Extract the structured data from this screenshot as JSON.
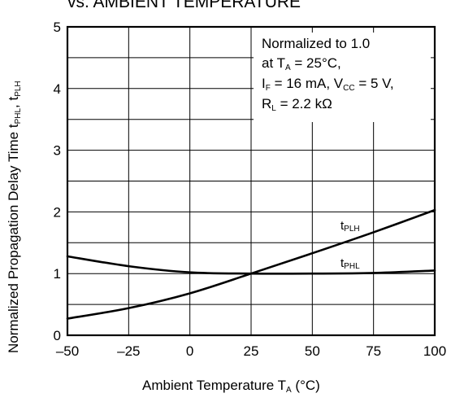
{
  "chart_data": {
    "type": "line",
    "title": "vs. AMBIENT TEMPERATURE",
    "xlabel": {
      "main": "Ambient Temperature  T",
      "sub": "A",
      "suffix": " (°C)"
    },
    "ylabel": {
      "main": "Normalized Propagation Delay Time  t",
      "sub1": "PHL",
      "mid": ", t",
      "sub2": "PLH"
    },
    "xlim": [
      -50,
      100
    ],
    "ylim": [
      0,
      5
    ],
    "x_ticks": [
      -50,
      -25,
      0,
      25,
      50,
      75,
      100
    ],
    "x_tick_labels": [
      "–50",
      "–25",
      "0",
      "25",
      "50",
      "75",
      "100"
    ],
    "y_ticks": [
      0,
      1,
      2,
      3,
      4,
      5
    ],
    "y_tick_labels": [
      "0",
      "1",
      "2",
      "3",
      "4",
      "5"
    ],
    "grid": true,
    "annotation": {
      "line1": "Normalized to 1.0",
      "line2_pre": "at T",
      "line2_sub": "A",
      "line2_post": " = 25°C,",
      "line3_pre": "I",
      "line3_sub1": "F",
      "line3_mid": " = 16 mA, V",
      "line3_sub2": "CC",
      "line3_post": " = 5 V,",
      "line4_pre": "R",
      "line4_sub": "L",
      "line4_post": " = 2.2 kΩ"
    },
    "series": [
      {
        "name": "tPLH",
        "label_main": "t",
        "label_sub": "PLH",
        "x": [
          -50,
          -25,
          0,
          25,
          50,
          75,
          100
        ],
        "y": [
          0.27,
          0.44,
          0.68,
          1.0,
          1.33,
          1.67,
          2.03
        ]
      },
      {
        "name": "tPHL",
        "label_main": "t",
        "label_sub": "PHL",
        "x": [
          -50,
          -25,
          0,
          25,
          50,
          75,
          100
        ],
        "y": [
          1.28,
          1.12,
          1.02,
          1.0,
          1.0,
          1.01,
          1.05
        ]
      }
    ],
    "line_color": "#000000",
    "grid_color": "#000000"
  }
}
